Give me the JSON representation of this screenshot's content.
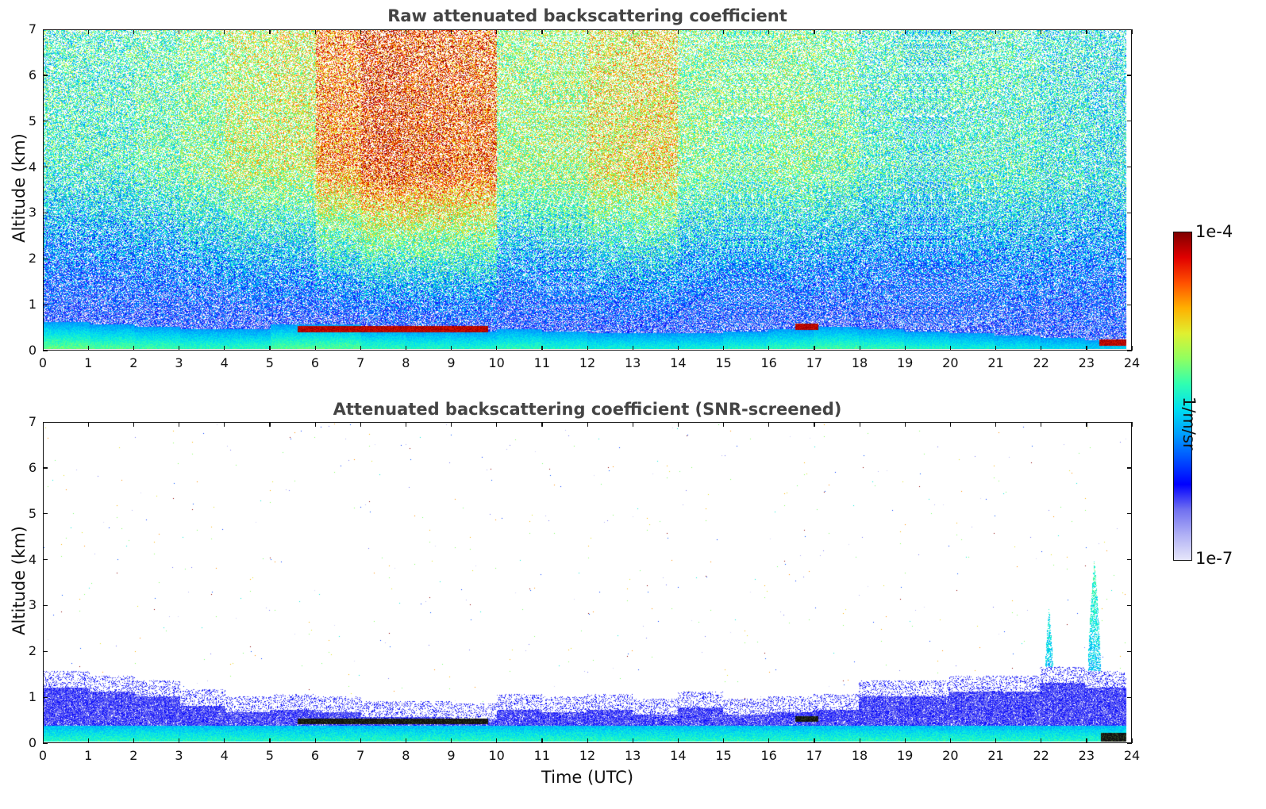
{
  "colors": {
    "jet": [
      "#e6e6fa",
      "#b0b0f5",
      "#7070f0",
      "#0000ff",
      "#0050ff",
      "#00a0ff",
      "#00e0f0",
      "#30ffb0",
      "#90ff60",
      "#e0f030",
      "#ffb000",
      "#ff5000",
      "#e00000",
      "#800000"
    ],
    "black_layer": "#111111"
  },
  "chart_data": [
    {
      "type": "heatmap",
      "title": "Raw attenuated backscattering coefficient",
      "xlabel": "",
      "ylabel": "Altitude (km)",
      "xlim": [
        0,
        24
      ],
      "ylim": [
        0,
        7
      ],
      "xticks": [
        "0",
        "1",
        "2",
        "3",
        "4",
        "5",
        "6",
        "7",
        "8",
        "9",
        "10",
        "11",
        "12",
        "13",
        "14",
        "15",
        "16",
        "17",
        "18",
        "19",
        "20",
        "21",
        "22",
        "23",
        "24"
      ],
      "yticks": [
        "0",
        "1",
        "2",
        "3",
        "4",
        "5",
        "6",
        "7"
      ],
      "noise_level_by_hour": [
        0.55,
        0.55,
        0.58,
        0.62,
        0.68,
        0.7,
        0.85,
        0.92,
        0.9,
        0.88,
        0.65,
        0.66,
        0.72,
        0.74,
        0.62,
        0.6,
        0.62,
        0.6,
        0.55,
        0.52,
        0.55,
        0.55,
        0.52,
        0.5
      ],
      "boundary_layer_top_km": [
        0.6,
        0.55,
        0.5,
        0.45,
        0.45,
        0.55,
        0.55,
        0.45,
        0.42,
        0.4,
        0.45,
        0.4,
        0.35,
        0.35,
        0.35,
        0.4,
        0.45,
        0.5,
        0.45,
        0.4,
        0.35,
        0.3,
        0.25,
        0.2
      ],
      "cloud_layers": [
        {
          "start": 5.6,
          "end": 9.8,
          "altitude_km": 0.45
        },
        {
          "start": 16.6,
          "end": 17.1,
          "altitude_km": 0.5
        },
        {
          "start": 23.3,
          "end": 23.9,
          "altitude_km": 0.15
        }
      ]
    },
    {
      "type": "heatmap",
      "title": "Attenuated backscattering coefficient (SNR-screened)",
      "xlabel": "Time (UTC)",
      "ylabel": "Altitude (km)",
      "xlim": [
        0,
        24
      ],
      "ylim": [
        0,
        7
      ],
      "xticks": [
        "0",
        "1",
        "2",
        "3",
        "4",
        "5",
        "6",
        "7",
        "8",
        "9",
        "10",
        "11",
        "12",
        "13",
        "14",
        "15",
        "16",
        "17",
        "18",
        "19",
        "20",
        "21",
        "22",
        "23",
        "24"
      ],
      "yticks": [
        "0",
        "1",
        "2",
        "3",
        "4",
        "5",
        "6",
        "7"
      ],
      "screened_top_km": [
        1.2,
        1.1,
        1.0,
        0.8,
        0.65,
        0.7,
        0.65,
        0.55,
        0.55,
        0.5,
        0.7,
        0.65,
        0.7,
        0.6,
        0.75,
        0.6,
        0.65,
        0.7,
        1.0,
        1.0,
        1.1,
        1.1,
        1.3,
        1.2
      ],
      "plumes": [
        {
          "center": 22.2,
          "width": 0.25,
          "top_km": 3.0
        },
        {
          "center": 23.2,
          "width": 0.35,
          "top_km": 4.0
        },
        {
          "center": 23.55,
          "width": 0.2,
          "top_km": 1.5
        }
      ]
    }
  ],
  "colorbar": {
    "max_label": "1e-4",
    "min_label": "1e-7",
    "unit_label": "1/m/sr"
  }
}
